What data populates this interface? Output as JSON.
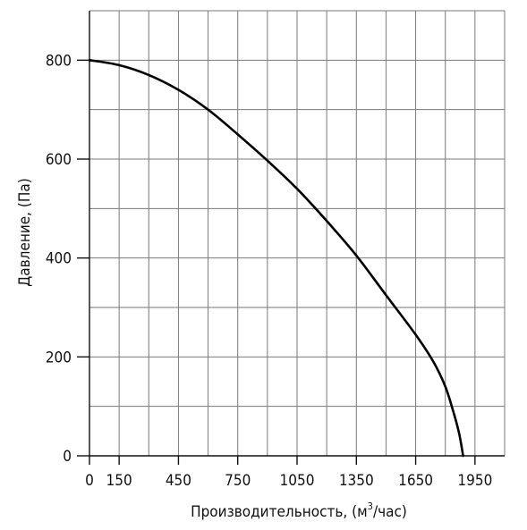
{
  "chart_data": {
    "type": "line",
    "title": "",
    "xlabel": "Производительность, (м",
    "xlabel_sup": "3",
    "xlabel_tail": "/час)",
    "ylabel": "Давление, (Па)",
    "xlim": [
      0,
      2100
    ],
    "ylim": [
      0,
      900
    ],
    "x_ticks": [
      0,
      150,
      450,
      750,
      1050,
      1350,
      1650,
      1950
    ],
    "x_tick_labels": [
      "0",
      "150",
      "450",
      "750",
      "1050",
      "1350",
      "1650",
      "1950"
    ],
    "y_ticks": [
      0,
      200,
      400,
      600,
      800
    ],
    "y_tick_labels": [
      "0",
      "200",
      "400",
      "600",
      "800"
    ],
    "grid": true,
    "x_grid_step": 150,
    "y_grid_step": 100,
    "line_color": "#000000",
    "series": [
      {
        "x": [
          0,
          150,
          300,
          450,
          600,
          750,
          900,
          1050,
          1200,
          1350,
          1500,
          1650,
          1740,
          1800,
          1840,
          1870,
          1890
        ],
        "values": [
          800,
          790,
          770,
          740,
          700,
          650,
          597,
          540,
          475,
          405,
          325,
          245,
          190,
          140,
          90,
          45,
          0
        ]
      }
    ]
  }
}
